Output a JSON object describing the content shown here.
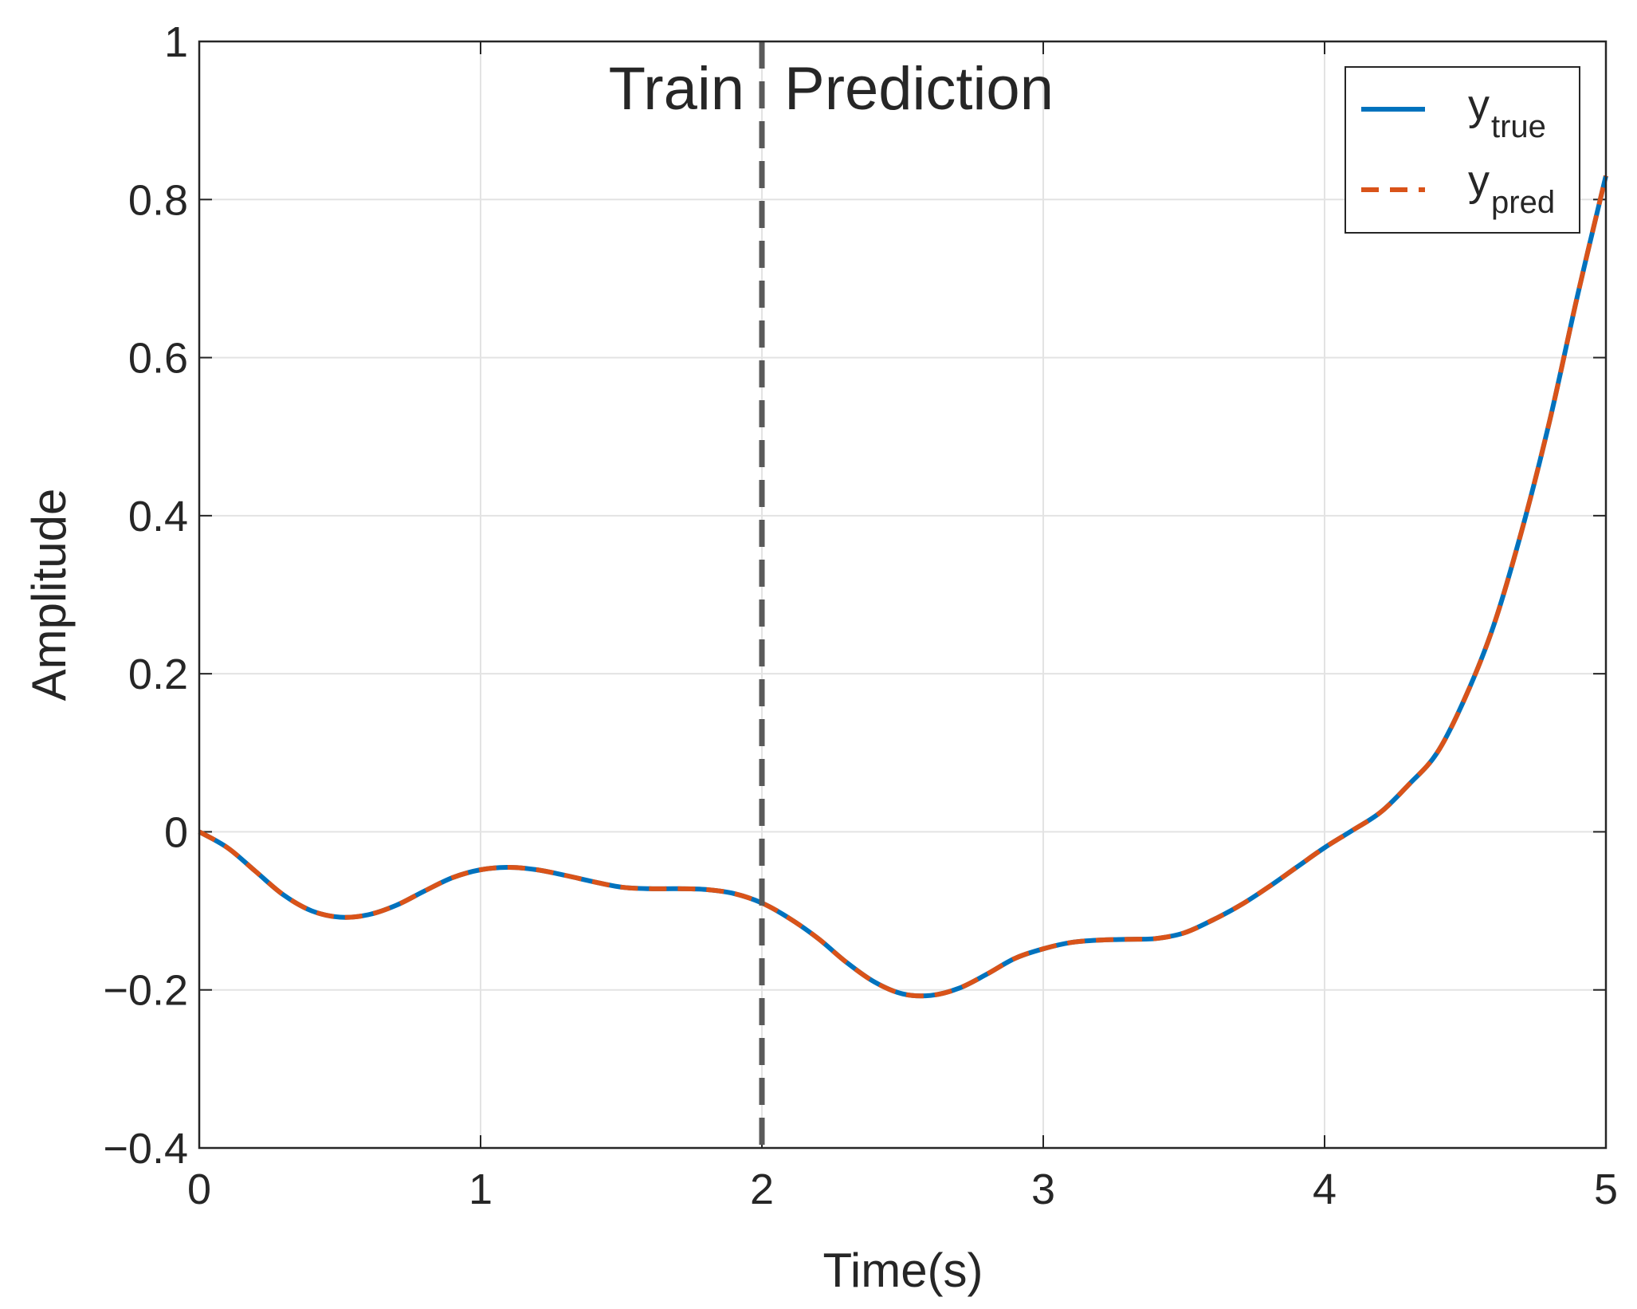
{
  "chart_data": {
    "type": "line",
    "title": "",
    "xlabel": "Time(s)",
    "ylabel": "Amplitude",
    "xlim": [
      0,
      5
    ],
    "ylim": [
      -0.4,
      1
    ],
    "xticks": [
      0,
      1,
      2,
      3,
      4,
      5
    ],
    "xtick_labels": [
      "0",
      "1",
      "2",
      "3",
      "4",
      "5"
    ],
    "yticks": [
      -0.4,
      -0.2,
      0,
      0.2,
      0.4,
      0.6,
      0.8,
      1
    ],
    "ytick_labels": [
      "−0.4",
      "−0.2",
      "0",
      "0.2",
      "0.4",
      "0.6",
      "0.8",
      "1"
    ],
    "grid": true,
    "legend_position": "top-right",
    "split_line": {
      "x": 2,
      "left_label": "Train",
      "right_label": "Prediction",
      "color": "#5a5a5a"
    },
    "series": [
      {
        "legend_base": "y",
        "legend_sub": "true",
        "color": "#0072BD",
        "style": "solid",
        "x": [
          0,
          0.1,
          0.2,
          0.3,
          0.4,
          0.5,
          0.6,
          0.7,
          0.8,
          0.9,
          1.0,
          1.1,
          1.2,
          1.3,
          1.4,
          1.5,
          1.6,
          1.7,
          1.8,
          1.9,
          2.0,
          2.1,
          2.2,
          2.3,
          2.4,
          2.5,
          2.6,
          2.7,
          2.8,
          2.9,
          3.0,
          3.1,
          3.2,
          3.3,
          3.4,
          3.5,
          3.6,
          3.7,
          3.8,
          3.9,
          4.0,
          4.1,
          4.2,
          4.3,
          4.4,
          4.5,
          4.6,
          4.7,
          4.8,
          4.9,
          5.0
        ],
        "y": [
          0,
          -0.02,
          -0.05,
          -0.08,
          -0.1,
          -0.108,
          -0.105,
          -0.093,
          -0.075,
          -0.058,
          -0.048,
          -0.045,
          -0.048,
          -0.055,
          -0.063,
          -0.07,
          -0.072,
          -0.072,
          -0.073,
          -0.078,
          -0.09,
          -0.11,
          -0.135,
          -0.165,
          -0.19,
          -0.205,
          -0.207,
          -0.198,
          -0.18,
          -0.16,
          -0.148,
          -0.14,
          -0.137,
          -0.136,
          -0.135,
          -0.128,
          -0.112,
          -0.093,
          -0.07,
          -0.045,
          -0.02,
          0.002,
          0.025,
          0.06,
          0.1,
          0.17,
          0.26,
          0.38,
          0.52,
          0.68,
          0.83
        ]
      },
      {
        "legend_base": "y",
        "legend_sub": "pred",
        "color": "#D95319",
        "style": "dashed",
        "x": [
          0,
          0.1,
          0.2,
          0.3,
          0.4,
          0.5,
          0.6,
          0.7,
          0.8,
          0.9,
          1.0,
          1.1,
          1.2,
          1.3,
          1.4,
          1.5,
          1.6,
          1.7,
          1.8,
          1.9,
          2.0,
          2.1,
          2.2,
          2.3,
          2.4,
          2.5,
          2.6,
          2.7,
          2.8,
          2.9,
          3.0,
          3.1,
          3.2,
          3.3,
          3.4,
          3.5,
          3.6,
          3.7,
          3.8,
          3.9,
          4.0,
          4.1,
          4.2,
          4.3,
          4.4,
          4.5,
          4.6,
          4.7,
          4.8,
          4.9,
          5.0
        ],
        "y": [
          0,
          -0.02,
          -0.05,
          -0.08,
          -0.1,
          -0.108,
          -0.105,
          -0.093,
          -0.075,
          -0.058,
          -0.048,
          -0.045,
          -0.048,
          -0.055,
          -0.063,
          -0.07,
          -0.072,
          -0.072,
          -0.073,
          -0.078,
          -0.09,
          -0.11,
          -0.135,
          -0.165,
          -0.19,
          -0.205,
          -0.207,
          -0.198,
          -0.18,
          -0.16,
          -0.148,
          -0.14,
          -0.137,
          -0.136,
          -0.135,
          -0.128,
          -0.112,
          -0.093,
          -0.07,
          -0.045,
          -0.02,
          0.002,
          0.025,
          0.06,
          0.1,
          0.17,
          0.26,
          0.38,
          0.52,
          0.68,
          0.83
        ]
      }
    ]
  }
}
